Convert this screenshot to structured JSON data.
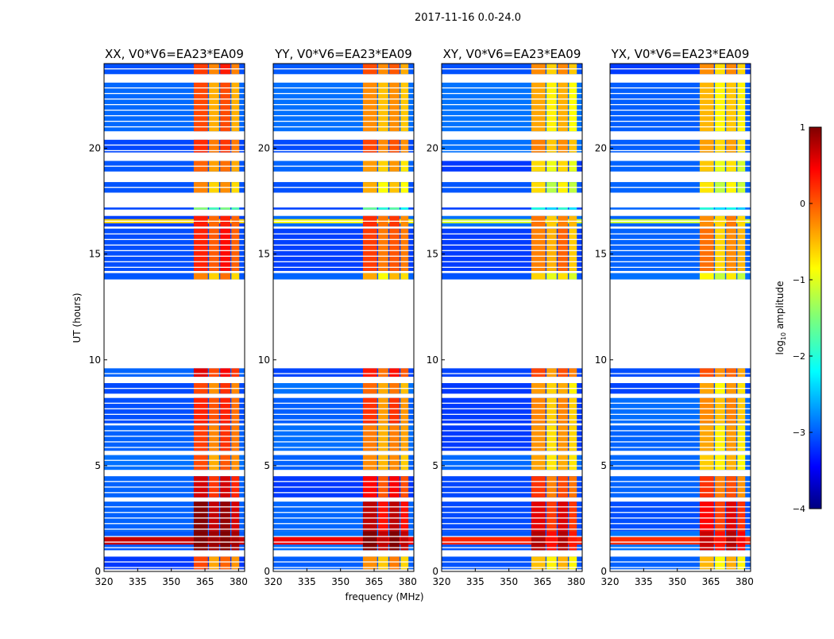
{
  "chart_data": {
    "type": "heatmap",
    "title": "2017-11-16 0.0-24.0",
    "xlabel": "frequency (MHz)",
    "ylabel": "UT (hours)",
    "xlim": [
      320,
      382.7
    ],
    "ylim": [
      0,
      24
    ],
    "xticks": [
      320,
      335,
      350,
      365,
      380
    ],
    "yticks": [
      0,
      5,
      10,
      15,
      20
    ],
    "panels": [
      {
        "title": "XX, V0*V6=EA23*EA09",
        "rfi_offset": 0.35
      },
      {
        "title": "YY, V0*V6=EA23*EA09",
        "rfi_offset": 0.15
      },
      {
        "title": "XY, V0*V6=EA23*EA09",
        "rfi_offset": -0.1
      },
      {
        "title": "YX, V0*V6=EA23*EA09",
        "rfi_offset": -0.15
      }
    ],
    "background_level": -3.1,
    "rfi_bands_mhz": [
      [
        360,
        366.3
      ],
      [
        366.8,
        371.3
      ],
      [
        371.8,
        376.3
      ],
      [
        376.8,
        380.3
      ]
    ],
    "time_segments": [
      {
        "t": [
          0.1,
          0.7
        ],
        "rfi": -0.6
      },
      {
        "t": [
          1.0,
          1.9
        ],
        "rfi": 0.6,
        "broadband": 0.3
      },
      {
        "t": [
          1.9,
          3.3
        ],
        "rfi": 0.4
      },
      {
        "t": [
          3.5,
          4.5
        ],
        "rfi": 0.0
      },
      {
        "t": [
          4.8,
          5.5
        ],
        "rfi": -0.6
      },
      {
        "t": [
          5.7,
          6.9
        ],
        "rfi": -0.5
      },
      {
        "t": [
          7.0,
          8.2
        ],
        "rfi": -0.3
      },
      {
        "t": [
          8.4,
          8.9
        ],
        "rfi": -0.5
      },
      {
        "t": [
          9.2,
          9.6
        ],
        "rfi": -0.1
      },
      {
        "t": [
          13.8,
          14.1
        ],
        "rfi": -0.8
      },
      {
        "t": [
          14.2,
          16.2
        ],
        "rfi": -0.3
      },
      {
        "t": [
          16.3,
          16.8
        ],
        "rfi": -0.3,
        "broadband": -1.0
      },
      {
        "t": [
          17.1,
          17.2
        ],
        "rfi": -2.0
      },
      {
        "t": [
          17.9,
          18.4
        ],
        "rfi": -0.9
      },
      {
        "t": [
          18.9,
          19.4
        ],
        "rfi": -0.7
      },
      {
        "t": [
          19.8,
          20.4
        ],
        "rfi": -0.4
      },
      {
        "t": [
          20.8,
          23.1
        ],
        "rfi": -0.6
      },
      {
        "t": [
          23.5,
          24.0
        ],
        "rfi": -0.4
      }
    ],
    "colorbar": {
      "label": "log10 amplitude",
      "range": [
        -4,
        1
      ],
      "ticks": [
        1,
        0,
        -1,
        -2,
        -3,
        -4
      ],
      "colormap": "jet"
    }
  }
}
